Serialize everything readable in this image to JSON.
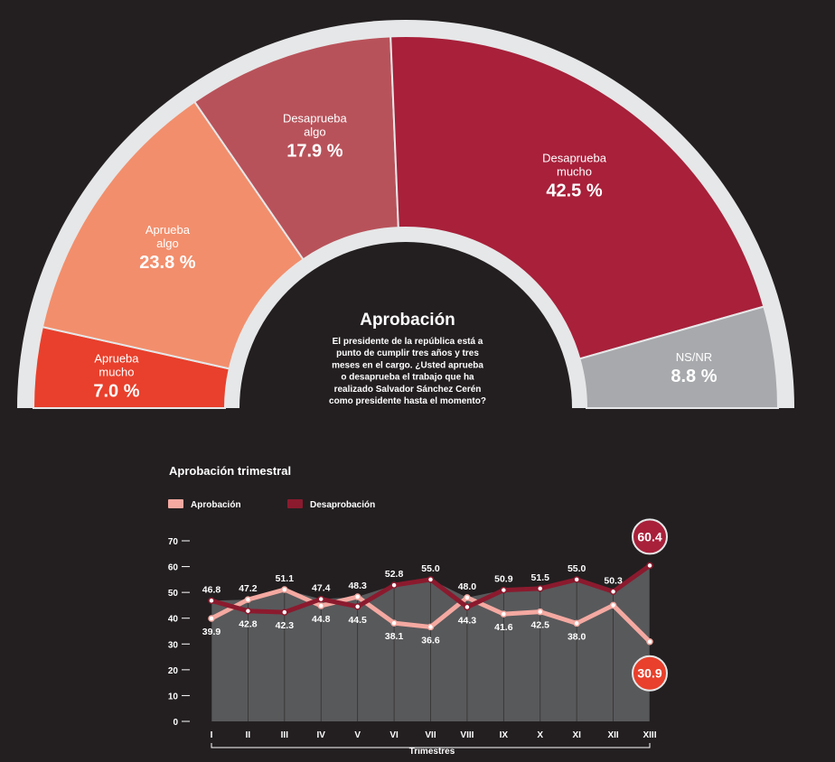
{
  "semicircle": {
    "type": "pie",
    "center_title": "Aprobación",
    "question": [
      "El presidente de la república está a",
      "punto de cumplir tres años y tres",
      "meses en el cargo. ¿Usted aprueba",
      "o desaprueba el trabajo que ha",
      "realizado Salvador Sánchez Cerén",
      "como presidente hasta el momento?"
    ],
    "slices": [
      {
        "lines": [
          "Aprueba",
          "mucho"
        ],
        "value": 7.0,
        "value_label": "7.0 %",
        "color": "#e8402c"
      },
      {
        "lines": [
          "Aprueba",
          "algo"
        ],
        "value": 23.8,
        "value_label": "23.8 %",
        "color": "#f28e6c"
      },
      {
        "lines": [
          "Desaprueba",
          "algo"
        ],
        "value": 17.9,
        "value_label": "17.9 %",
        "color": "#b8525a"
      },
      {
        "lines": [
          "Desaprueba",
          "mucho"
        ],
        "value": 42.5,
        "value_label": "42.5 %",
        "color": "#a8203a"
      },
      {
        "lines": [
          "NS/NR"
        ],
        "value": 8.8,
        "value_label": "8.8 %",
        "color": "#a7a9ac"
      }
    ]
  },
  "chart_data": {
    "type": "line",
    "title": "Aprobación trimestral",
    "xlabel": "Trimestres",
    "categories": [
      "I",
      "II",
      "III",
      "IV",
      "V",
      "VI",
      "VII",
      "VIII",
      "IX",
      "X",
      "XI",
      "XII",
      "XIII"
    ],
    "yticks": [
      "70",
      "60",
      "50",
      "40",
      "30",
      "20",
      "10",
      "0"
    ],
    "ylim": [
      0,
      70
    ],
    "series": [
      {
        "name": "Aprobación",
        "color": "#f4a9a1",
        "values": [
          39.9,
          47.2,
          51.1,
          44.8,
          48.3,
          38.1,
          36.6,
          48.0,
          41.6,
          42.5,
          38.0,
          45.0,
          30.9
        ],
        "labels": [
          "39.9",
          "47.2",
          "51.1",
          "44.8",
          "48.3",
          "38.1",
          "36.6",
          "48.0",
          "41.6",
          "42.5",
          "38.0",
          "",
          "30.9"
        ]
      },
      {
        "name": "Desaprobación",
        "color": "#8b1a2e",
        "values": [
          46.8,
          42.8,
          42.3,
          47.4,
          44.5,
          52.8,
          55.0,
          44.3,
          50.9,
          51.5,
          55.0,
          50.3,
          60.4
        ],
        "labels": [
          "46.8",
          "42.8",
          "42.3",
          "47.4",
          "44.5",
          "52.8",
          "55.0",
          "44.3",
          "50.9",
          "51.5",
          "55.0",
          "50.3",
          "60.4"
        ]
      }
    ],
    "highlight": {
      "Aprobación": "30.9",
      "Desaprobación": "60.4"
    },
    "highlight_colors": {
      "Aprobación": "#e8402c",
      "Desaprobación": "#a8203a"
    },
    "area_color": "#58595b",
    "grid": true
  }
}
